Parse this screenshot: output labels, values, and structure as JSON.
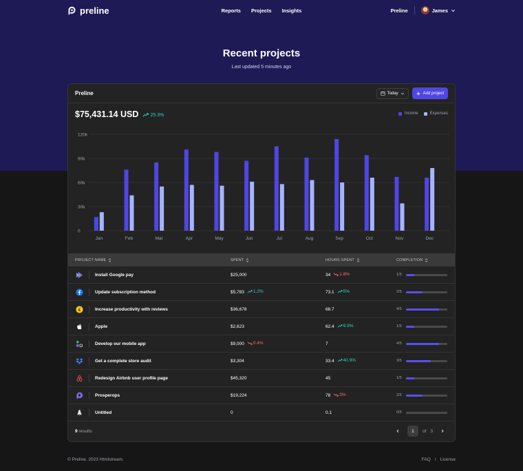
{
  "nav": {
    "brand": "preline",
    "links": [
      "Reports",
      "Projects",
      "Insights"
    ],
    "right_link": "Preline",
    "user_name": "James"
  },
  "hero": {
    "title": "Recent projects",
    "subtitle": "Last updated 5 minutes ago"
  },
  "card": {
    "title": "Preline",
    "date_filter": "Today",
    "add_button": "Add project",
    "amount": "$75,431.14 USD",
    "amount_change": "25.3%"
  },
  "colors": {
    "income": "#4f46e5",
    "expenses": "#a5b4fc",
    "accent": "#4f46e5",
    "up": "#2dd4bf",
    "down": "#f87171"
  },
  "chart_data": {
    "type": "bar",
    "categories": [
      "Jan",
      "Feb",
      "Mar",
      "Apr",
      "May",
      "Jun",
      "Jul",
      "Aug",
      "Sep",
      "Oct",
      "Nov",
      "Dec"
    ],
    "series": [
      {
        "name": "Income",
        "values": [
          17000,
          76000,
          85000,
          101000,
          98000,
          87000,
          105000,
          91000,
          114000,
          94000,
          67000,
          66000
        ]
      },
      {
        "name": "Expenses",
        "values": [
          23000,
          44000,
          55000,
          57000,
          56000,
          61000,
          58000,
          63000,
          60000,
          66000,
          34000,
          78000
        ]
      }
    ],
    "y_ticks": [
      "0",
      "30k",
      "60k",
      "90k",
      "120k"
    ],
    "ylim": [
      0,
      120000
    ],
    "grid": true,
    "legend_placement": "top-right"
  },
  "table": {
    "headers": {
      "name": "PROJECT NAME",
      "spent": "SPENT",
      "hours": "HOURS SPENT",
      "completion": "COMPLETION"
    },
    "rows": [
      {
        "icon": "google-pay-icon",
        "name": "Install Google pay",
        "spent": "$25,000",
        "spent_change": "",
        "spent_dir": "",
        "hours": "34",
        "hours_change": "1.8%",
        "hours_dir": "down",
        "completion": "1/5",
        "fraction": 0.2
      },
      {
        "icon": "facebook-icon",
        "name": "Update subscription method",
        "spent": "$5,783",
        "spent_change": "1.2%",
        "spent_dir": "up",
        "hours": "73.1",
        "hours_change": "5%",
        "hours_dir": "up",
        "completion": "2/5",
        "fraction": 0.4
      },
      {
        "icon": "euro-coin-icon",
        "name": "Increase productivity with reviews",
        "spent": "$36,678",
        "spent_change": "",
        "spent_dir": "",
        "hours": "68.7",
        "hours_change": "",
        "hours_dir": "",
        "completion": "4/5",
        "fraction": 0.8
      },
      {
        "icon": "apple-icon",
        "name": "Apple",
        "spent": "$2,623",
        "spent_change": "",
        "spent_dir": "",
        "hours": "62.4",
        "hours_change": "9.9%",
        "hours_dir": "up",
        "completion": "1/5",
        "fraction": 0.2
      },
      {
        "icon": "mobile-app-icon",
        "name": "Develop our mobile app",
        "spent": "$9,000",
        "spent_change": "0.4%",
        "spent_dir": "down",
        "hours": "7",
        "hours_change": "",
        "hours_dir": "",
        "completion": "4/5",
        "fraction": 0.8
      },
      {
        "icon": "dropbox-icon",
        "name": "Get a complete store audit",
        "spent": "$3,304",
        "spent_change": "",
        "spent_dir": "",
        "hours": "33.4",
        "hours_change": "40.9%",
        "hours_dir": "up",
        "completion": "3/5",
        "fraction": 0.6
      },
      {
        "icon": "airbnb-icon",
        "name": "Redesign Airbnb user profile page",
        "spent": "$45,320",
        "spent_change": "",
        "spent_dir": "",
        "hours": "45",
        "hours_change": "",
        "hours_dir": "",
        "completion": "1/5",
        "fraction": 0.2
      },
      {
        "icon": "prosperops-icon",
        "name": "Prosperops",
        "spent": "$19,224",
        "spent_change": "",
        "spent_dir": "",
        "hours": "78",
        "hours_change": "3%",
        "hours_dir": "down",
        "completion": "2/5",
        "fraction": 0.4
      },
      {
        "icon": "rocket-icon",
        "name": "Untitled",
        "spent": "0",
        "spent_change": "",
        "spent_dir": "",
        "hours": "0.1",
        "hours_change": "",
        "hours_dir": "",
        "completion": "0/5",
        "fraction": 0
      }
    ]
  },
  "pagination": {
    "count": "9",
    "count_label": "results",
    "current_page": "1",
    "of_label": "of",
    "total_pages": "3"
  },
  "footer": {
    "copyright": "© Preline. 2023 Htmlstream.",
    "links": [
      "FAQ",
      "/",
      "License"
    ]
  }
}
